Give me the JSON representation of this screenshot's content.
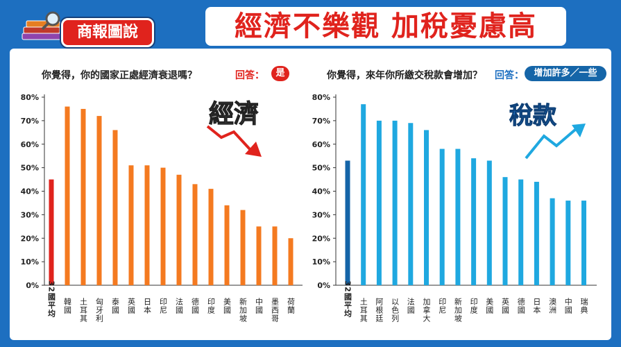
{
  "header": {
    "section_label": "商報圖說",
    "headline": "經濟不樂觀 加稅憂慮高"
  },
  "colors": {
    "frame_blue": "#1d6fc0",
    "red": "#e0231d",
    "orange": "#f47a20",
    "sky_blue": "#1fa8e0",
    "navy_blue": "#1565a8"
  },
  "icons": [
    "book-stack-icon",
    "magnifier-icon",
    "down-trend-arrow-icon",
    "up-trend-arrow-icon"
  ],
  "left_panel": {
    "question": "你覺得，你的國家正處經濟衰退嗎？",
    "answer_label": "回答：",
    "answer_value": "是",
    "deco_word": "經濟"
  },
  "right_panel": {
    "question": "你覺得，來年你所繳交稅款會增加？",
    "answer_label": "回答：",
    "answer_value": "增加許多／一些",
    "deco_word": "稅款"
  },
  "chart_data": [
    {
      "type": "bar",
      "categories": [
        "32國平均",
        "韓國",
        "土耳其",
        "匈牙利",
        "泰國",
        "英國",
        "日本",
        "印尼",
        "法國",
        "德國",
        "印度",
        "美國",
        "新加坡",
        "中國",
        "墨西哥",
        "荷蘭"
      ],
      "values": [
        45,
        76,
        75,
        72,
        66,
        51,
        51,
        50,
        47,
        43,
        41,
        34,
        32,
        25,
        25,
        20
      ],
      "highlight_index": 0,
      "colors": {
        "highlight": "#e0231d",
        "bars": "#f47a20"
      },
      "yticks": [
        "0%",
        "10%",
        "20%",
        "30%",
        "40%",
        "50%",
        "60%",
        "70%",
        "80%"
      ],
      "ylim": [
        0,
        80
      ],
      "title": "",
      "xlabel": "",
      "ylabel": ""
    },
    {
      "type": "bar",
      "categories": [
        "32國平均",
        "土耳其",
        "阿根廷",
        "以色列",
        "法國",
        "加拿大",
        "印尼",
        "新加坡",
        "印度",
        "美國",
        "英國",
        "德國",
        "日本",
        "澳洲",
        "中國",
        "瑞典"
      ],
      "values": [
        53,
        77,
        70,
        70,
        69,
        66,
        58,
        58,
        54,
        53,
        46,
        45,
        44,
        37,
        36,
        36
      ],
      "highlight_index": 0,
      "colors": {
        "highlight": "#1565a8",
        "bars": "#1fa8e0"
      },
      "yticks": [
        "0%",
        "10%",
        "20%",
        "30%",
        "40%",
        "50%",
        "60%",
        "70%",
        "80%"
      ],
      "ylim": [
        0,
        80
      ],
      "title": "",
      "xlabel": "",
      "ylabel": ""
    }
  ]
}
